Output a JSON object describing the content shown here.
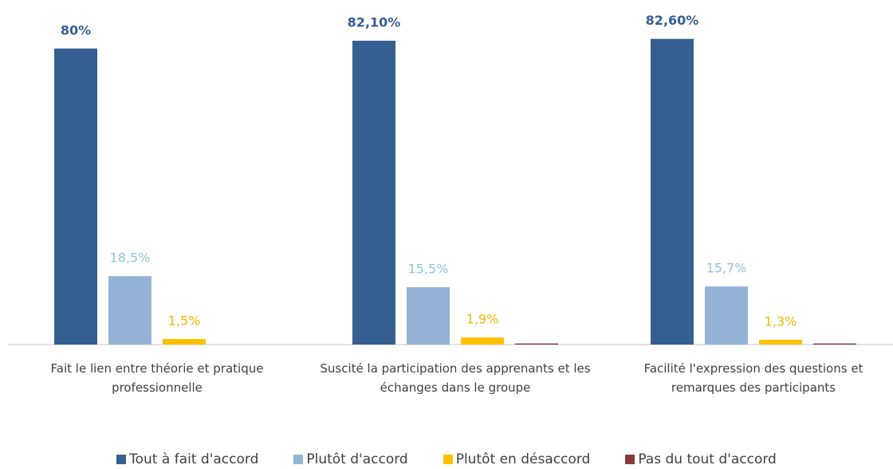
{
  "chart_data": {
    "type": "bar",
    "categories": [
      "Fait le lien entre théorie et pratique professionnelle",
      "Suscité la participation des apprenants et les échanges dans le groupe",
      "Facilité l'expression des questions et remarques des participants"
    ],
    "series": [
      {
        "name": "Tout à fait d'accord",
        "color": "#365f91",
        "label_color": "#365f91",
        "values": [
          80,
          82.1,
          82.6
        ],
        "value_labels": [
          "80%",
          "82,10%",
          "82,60%"
        ]
      },
      {
        "name": "Plutôt d'accord",
        "color": "#95b3d7",
        "label_color": "#8ec5dc",
        "values": [
          18.5,
          15.5,
          15.7
        ],
        "value_labels": [
          "18,5%",
          "15,5%",
          "15,7%"
        ]
      },
      {
        "name": "Plutôt en désaccord",
        "color": "#ffc000",
        "label_color": "#f5b800",
        "values": [
          1.5,
          1.9,
          1.3
        ],
        "value_labels": [
          "1,5%",
          "1,9%",
          "1,3%"
        ]
      },
      {
        "name": "Pas du tout d'accord",
        "color": "#8b3a3a",
        "values": [
          null,
          0.3,
          0.3
        ]
      }
    ]
  }
}
